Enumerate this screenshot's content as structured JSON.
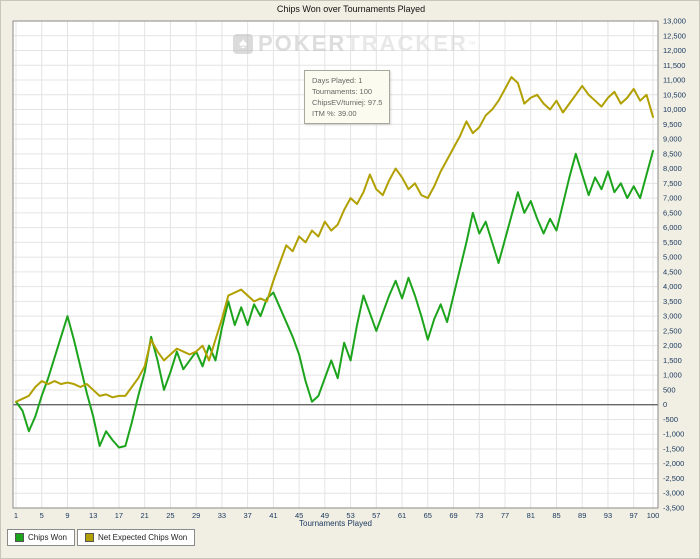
{
  "title": "Chips Won over Tournaments Played",
  "watermark": {
    "spade": "♠",
    "part1": "POKER",
    "part2": "TRACKER",
    "tm": "™"
  },
  "tooltip": {
    "lines": [
      "Days Played: 1",
      "Tournaments: 100",
      "ChipsEV/turniej: 97.5",
      "ITM %: 39.00"
    ]
  },
  "legend": {
    "items": [
      {
        "label": "Chips Won",
        "color": "#1da41d"
      },
      {
        "label": "Net Expected Chips Won",
        "color": "#b1a000"
      }
    ]
  },
  "chart_data": {
    "type": "line",
    "title": "Chips Won over Tournaments Played",
    "xlabel": "Tournaments Played",
    "ylabel": "",
    "xlim": [
      1,
      100
    ],
    "ylim": [
      -3500,
      13000
    ],
    "y_step": 500,
    "grid": true,
    "zero_line": true,
    "legend_position": "bottom-left",
    "x_ticks": [
      1,
      5,
      9,
      13,
      17,
      21,
      25,
      29,
      33,
      37,
      41,
      45,
      49,
      53,
      57,
      61,
      65,
      69,
      73,
      77,
      81,
      85,
      89,
      93,
      97,
      100
    ],
    "y_ticks": [
      13000,
      12500,
      12000,
      11500,
      11000,
      10500,
      10000,
      9500,
      9000,
      8500,
      8000,
      7500,
      7000,
      6500,
      6000,
      5500,
      5000,
      4500,
      4000,
      3500,
      3000,
      2500,
      2000,
      1500,
      1000,
      500,
      0,
      -500,
      -1000,
      -1500,
      -2000,
      -2500,
      -3000,
      -3500
    ],
    "series": [
      {
        "name": "Chips Won",
        "color": "#1da41d",
        "values": [
          100,
          -200,
          -900,
          -400,
          300,
          900,
          1600,
          2300,
          3000,
          2200,
          1300,
          400,
          -400,
          -1400,
          -900,
          -1200,
          -1450,
          -1400,
          -600,
          300,
          1100,
          2300,
          1500,
          500,
          1100,
          1800,
          1200,
          1500,
          1800,
          1300,
          2000,
          1500,
          2600,
          3500,
          2700,
          3300,
          2700,
          3400,
          3000,
          3600,
          3800,
          3300,
          2800,
          2300,
          1700,
          800,
          100,
          300,
          900,
          1500,
          900,
          2100,
          1500,
          2700,
          3700,
          3100,
          2500,
          3100,
          3700,
          4200,
          3600,
          4300,
          3700,
          3000,
          2200,
          2900,
          3400,
          2800,
          3700,
          4600,
          5500,
          6500,
          5800,
          6200,
          5500,
          4800,
          5600,
          6400,
          7200,
          6500,
          6900,
          6300,
          5800,
          6300,
          5900,
          6800,
          7700,
          8500,
          7800,
          7100,
          7700,
          7300,
          7900,
          7200,
          7500,
          7000,
          7400,
          7000,
          7800,
          8600
        ]
      },
      {
        "name": "Net Expected Chips Won",
        "color": "#b1a000",
        "values": [
          100,
          200,
          300,
          600,
          800,
          700,
          800,
          700,
          750,
          700,
          600,
          700,
          500,
          300,
          350,
          250,
          300,
          300,
          600,
          900,
          1300,
          2200,
          1800,
          1500,
          1700,
          1900,
          1800,
          1700,
          1800,
          2000,
          1500,
          2200,
          2900,
          3700,
          3800,
          3900,
          3700,
          3500,
          3600,
          3500,
          4200,
          4800,
          5400,
          5200,
          5700,
          5500,
          5900,
          5700,
          6200,
          5900,
          6100,
          6600,
          7000,
          6800,
          7200,
          7800,
          7300,
          7100,
          7600,
          8000,
          7700,
          7300,
          7500,
          7100,
          7000,
          7400,
          7900,
          8300,
          8700,
          9100,
          9600,
          9200,
          9400,
          9800,
          10000,
          10300,
          10700,
          11100,
          10900,
          10200,
          10400,
          10500,
          10200,
          10000,
          10300,
          9900,
          10200,
          10500,
          10800,
          10500,
          10300,
          10100,
          10400,
          10600,
          10200,
          10400,
          10700,
          10300,
          10500,
          9750
        ]
      }
    ]
  }
}
